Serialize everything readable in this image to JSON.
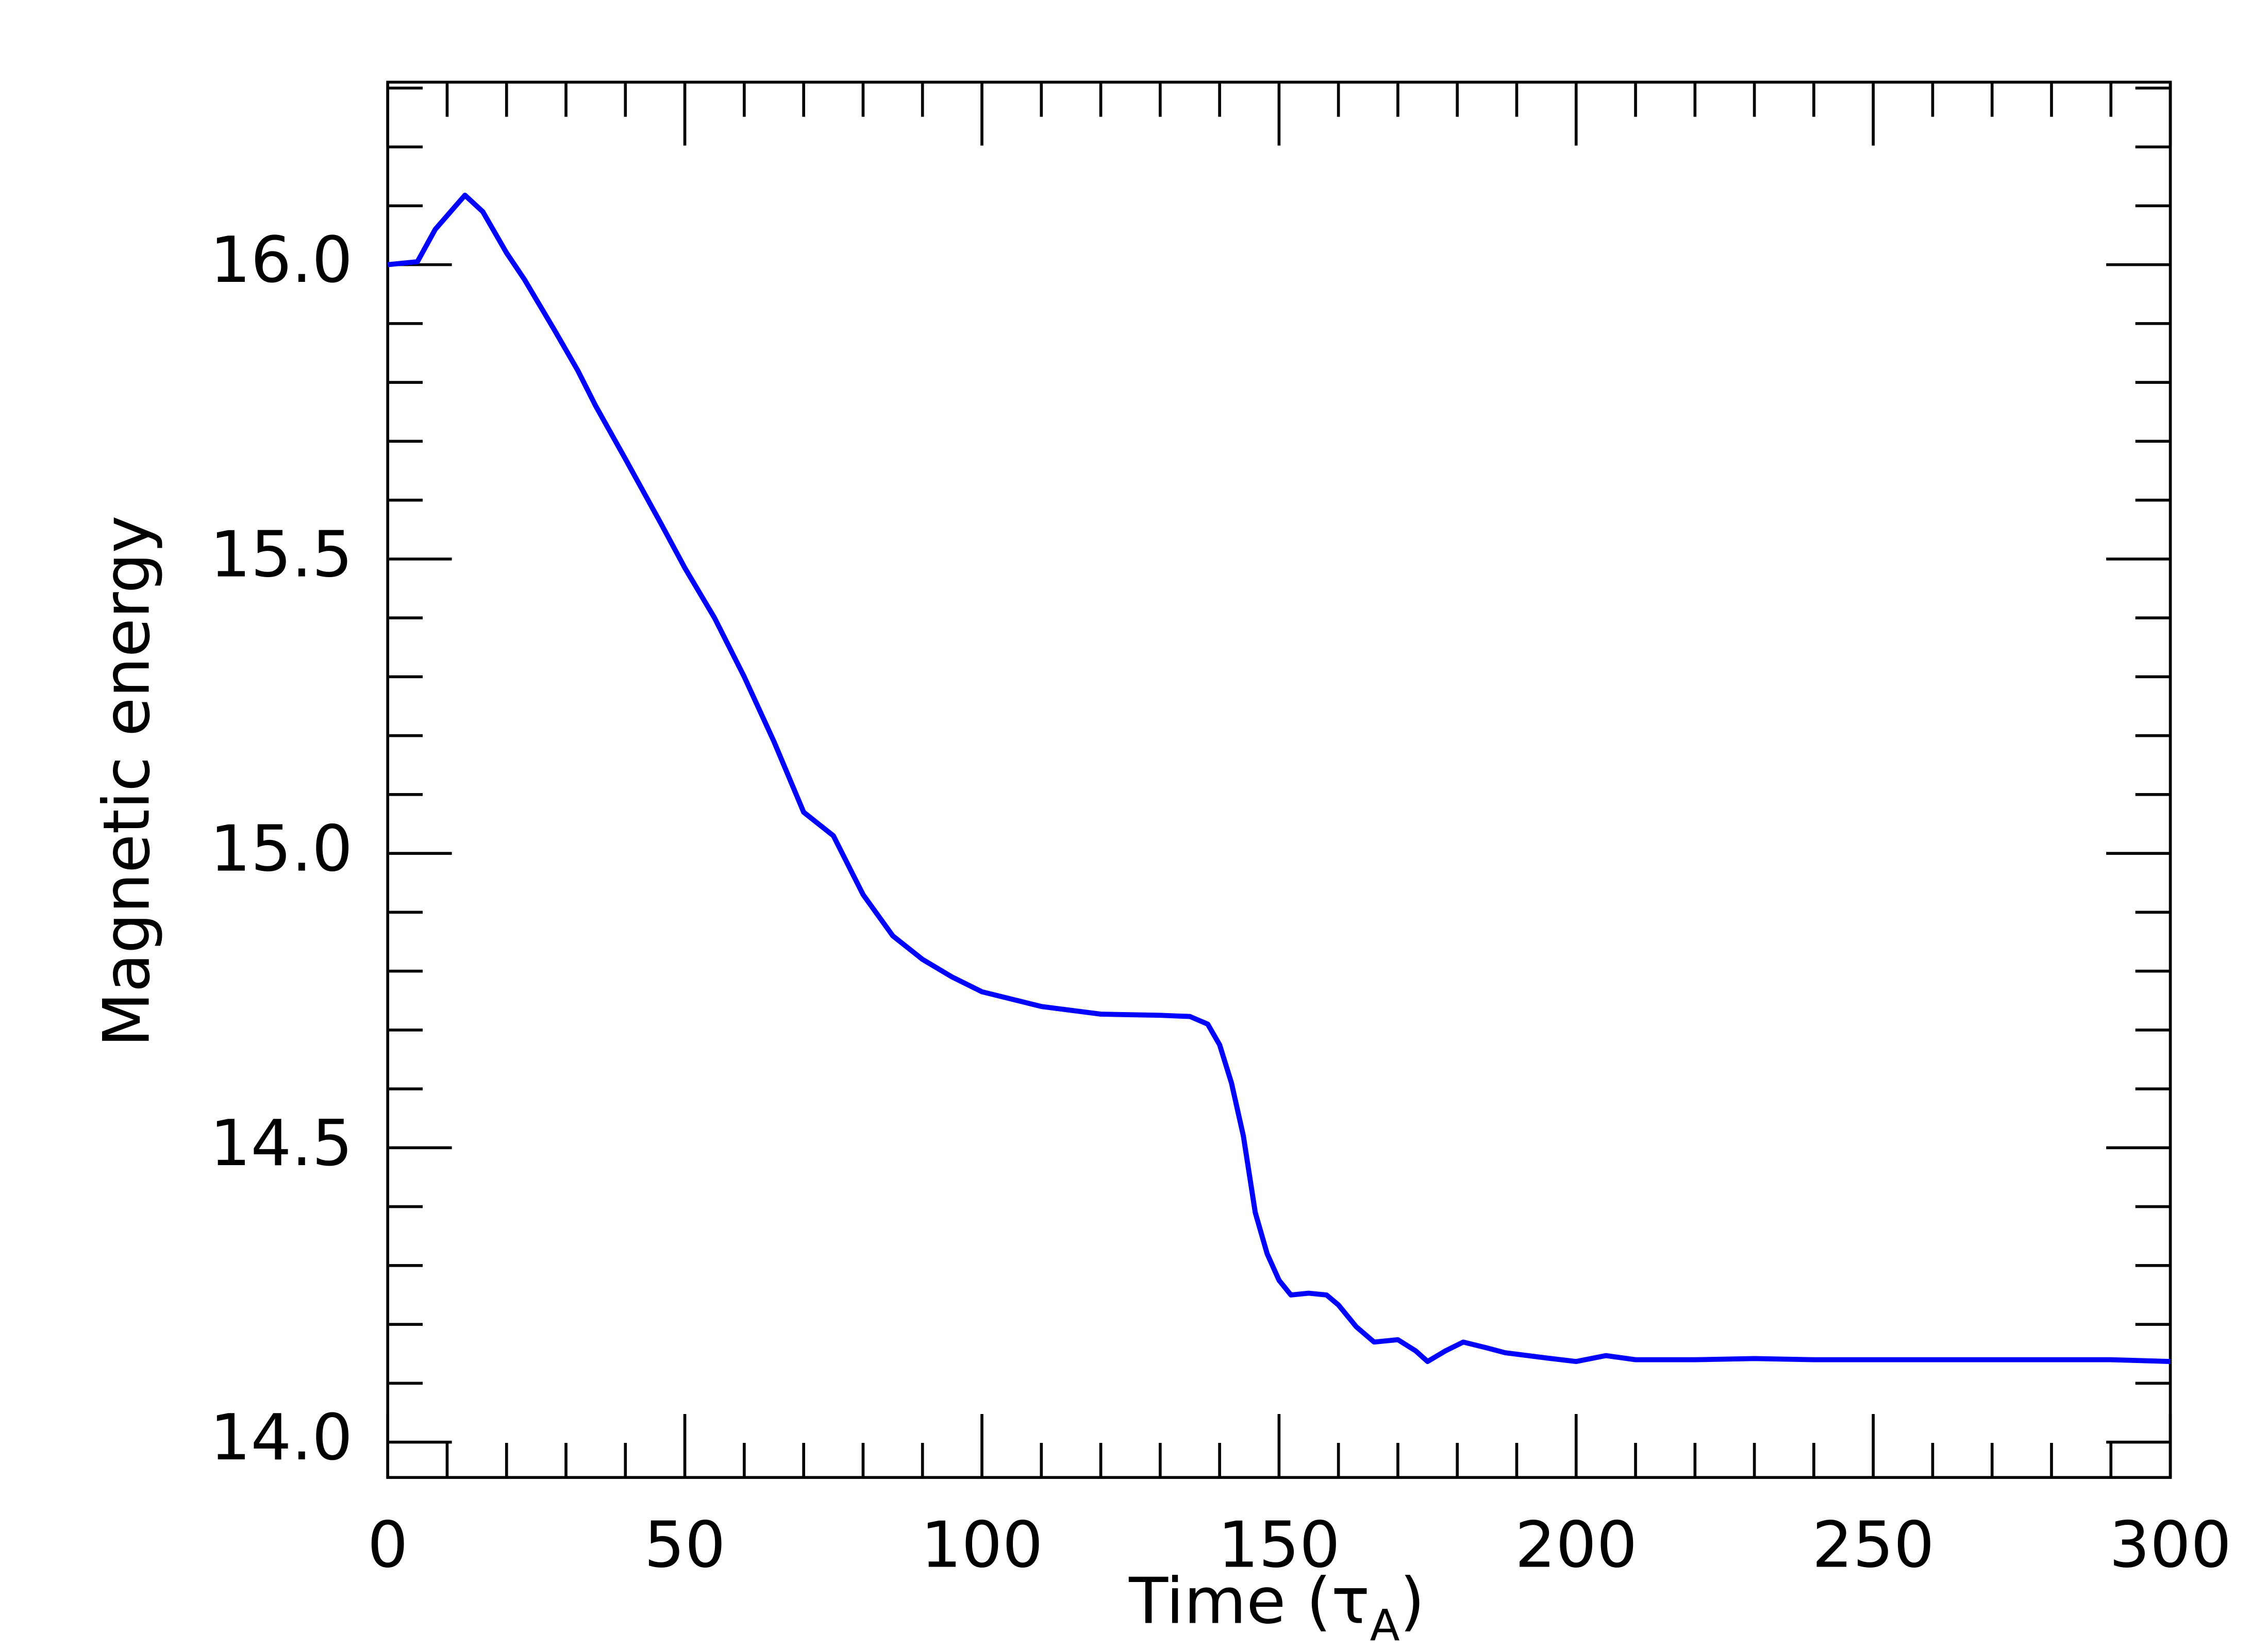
{
  "chart_data": {
    "type": "line",
    "xlabel": [
      "Time (τ",
      "A",
      ")"
    ],
    "ylabel": "Magnetic energy",
    "xlim": [
      0,
      300
    ],
    "ylim": [
      13.94,
      16.31
    ],
    "xticks": [
      0,
      50,
      100,
      150,
      200,
      250,
      300
    ],
    "yticks": [
      {
        "value": 14,
        "label": "14.0"
      },
      14.5,
      {
        "value": 15,
        "label": "15.0"
      },
      15.5,
      {
        "value": 16,
        "label": "16.0"
      }
    ],
    "xminor_ticks": [
      10,
      20,
      30,
      40,
      60,
      70,
      80,
      90,
      110,
      120,
      130,
      140,
      160,
      170,
      180,
      190,
      210,
      220,
      230,
      240,
      260,
      270,
      280,
      290
    ],
    "yminor_ticks": [
      14.1,
      14.2,
      14.3,
      14.4,
      14.6,
      14.7,
      14.8,
      14.9,
      15.1,
      15.2,
      15.3,
      15.4,
      15.6,
      15.7,
      15.8,
      15.9,
      16.1,
      16.2,
      16.3
    ],
    "x": [
      0,
      5,
      8,
      13,
      16,
      20,
      23,
      28,
      32,
      35,
      40,
      46,
      50,
      55,
      60,
      65,
      70,
      75,
      80,
      85,
      90,
      95,
      100,
      110,
      120,
      130,
      135,
      138,
      140,
      142,
      144,
      146,
      148,
      150,
      152,
      155,
      158,
      160,
      163,
      166,
      170,
      173,
      175,
      178,
      181,
      185,
      188,
      195,
      200,
      205,
      210,
      220,
      230,
      240,
      250,
      260,
      270,
      280,
      290,
      300
    ],
    "series": [
      {
        "color": "#0000ff",
        "values": [
          16.0,
          16.005,
          16.06,
          16.118,
          16.09,
          16.02,
          15.975,
          15.89,
          15.82,
          15.76,
          15.67,
          15.56,
          15.485,
          15.4,
          15.3,
          15.19,
          15.07,
          15.03,
          14.93,
          14.86,
          14.82,
          14.79,
          14.765,
          14.74,
          14.727,
          14.725,
          14.723,
          14.71,
          14.675,
          14.61,
          14.52,
          14.39,
          14.32,
          14.275,
          14.25,
          14.253,
          14.25,
          14.233,
          14.196,
          14.17,
          14.174,
          14.155,
          14.137,
          14.155,
          14.17,
          14.16,
          14.152,
          14.143,
          14.137,
          14.147,
          14.14,
          14.14,
          14.142,
          14.14,
          14.14,
          14.14,
          14.14,
          14.14,
          14.14,
          14.137
        ]
      }
    ]
  }
}
